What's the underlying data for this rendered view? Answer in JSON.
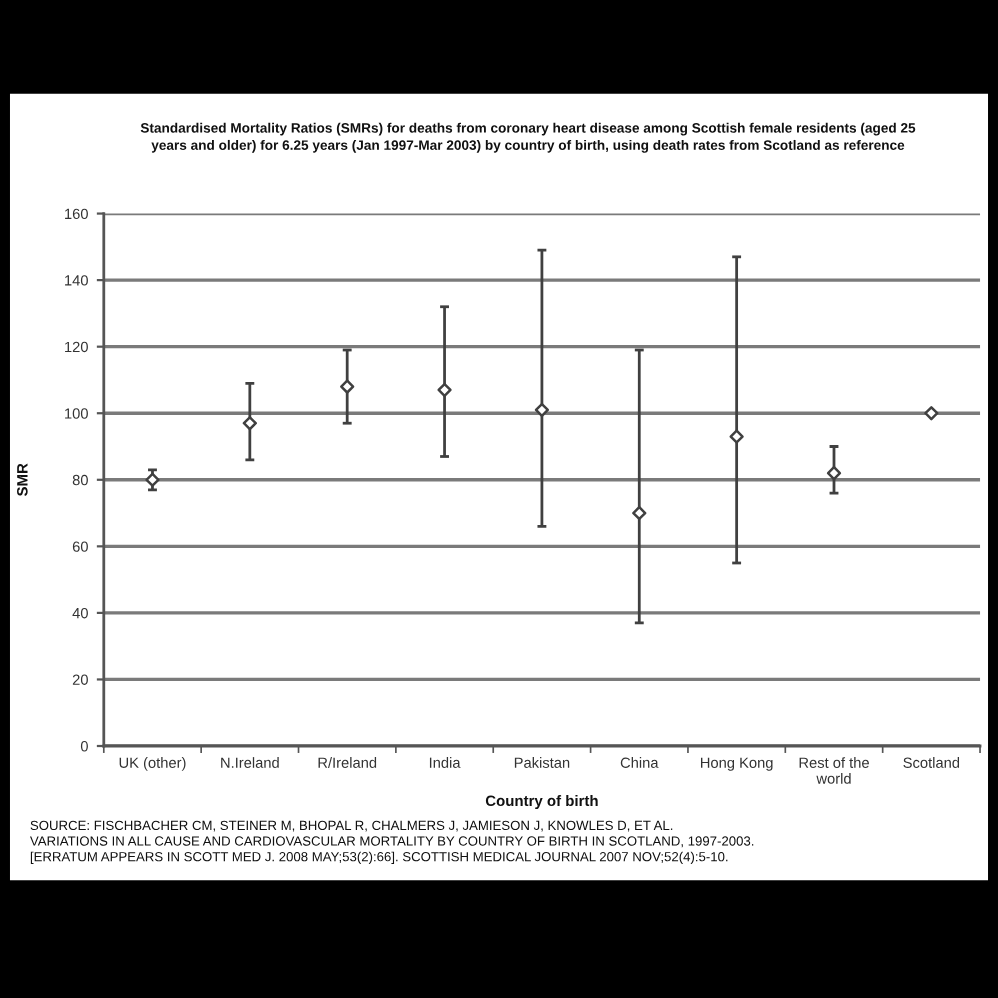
{
  "chart_data": {
    "type": "scatter",
    "title": "Standardised Mortality Ratios (SMRs) for deaths from coronary heart disease among Scottish female residents (aged 25\nyears and older) for 6.25 years (Jan 1997-Mar 2003) by country of birth, using death rates from Scotland as reference",
    "xlabel": "Country of birth",
    "ylabel": "SMR",
    "categories": [
      "UK (other)",
      "N.Ireland",
      "R/Ireland",
      "India",
      "Pakistan",
      "China",
      "Hong Kong",
      "Rest of the\nworld",
      "Scotland"
    ],
    "series": [
      {
        "color": "#404040",
        "values": [
          80,
          97,
          108,
          107,
          101,
          70,
          93,
          82,
          100
        ],
        "errors": [
          [
            77,
            83
          ],
          [
            86,
            109
          ],
          [
            97,
            119
          ],
          [
            87,
            132
          ],
          [
            66,
            149
          ],
          [
            37,
            119
          ],
          [
            55,
            147
          ],
          [
            76,
            90
          ],
          null
        ]
      }
    ],
    "ylim": [
      0,
      160
    ],
    "yticks": [
      0,
      20,
      40,
      60,
      80,
      100,
      120,
      140,
      160
    ],
    "grid": "y",
    "marker": "diamond",
    "annotations": [
      "SOURCE: FISCHBACHER CM, STEINER M, BHOPAL R, CHALMERS J, JAMIESON J, KNOWLES D, ET AL.\nVARIATIONS IN ALL CAUSE AND CARDIOVASCULAR MORTALITY BY COUNTRY OF BIRTH IN SCOTLAND, 1997-2003.\n[ERRATUM APPEARS IN SCOTT MED J. 2008 MAY;53(2):66]. SCOTTISH MEDICAL JOURNAL 2007 NOV;52(4):5-10."
    ]
  }
}
